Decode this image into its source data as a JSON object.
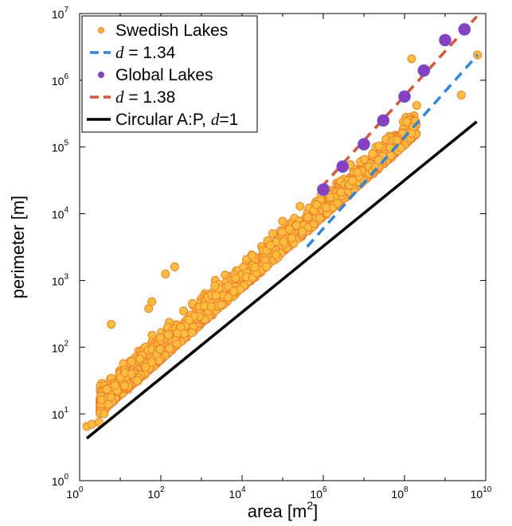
{
  "chart_data": {
    "type": "scatter",
    "xlabel": "area [m",
    "xlabel_sup": "2",
    "xlabel_close": "]",
    "ylabel": "perimeter [m]",
    "xscale": "log",
    "yscale": "log",
    "xlim": [
      1,
      10000000000
    ],
    "ylim": [
      1,
      10000000
    ],
    "grid": false,
    "legend_placement": "top-left",
    "x_tick_labels": [
      {
        "base": "10",
        "exp": "0"
      },
      {
        "base": "10",
        "exp": "2"
      },
      {
        "base": "10",
        "exp": "4"
      },
      {
        "base": "10",
        "exp": "6"
      },
      {
        "base": "10",
        "exp": "8"
      },
      {
        "base": "10",
        "exp": "10"
      }
    ],
    "y_tick_labels": [
      {
        "base": "10",
        "exp": "0"
      },
      {
        "base": "10",
        "exp": "1"
      },
      {
        "base": "10",
        "exp": "2"
      },
      {
        "base": "10",
        "exp": "3"
      },
      {
        "base": "10",
        "exp": "4"
      },
      {
        "base": "10",
        "exp": "5"
      },
      {
        "base": "10",
        "exp": "6"
      },
      {
        "base": "10",
        "exp": "7"
      }
    ],
    "legend": [
      {
        "label": "Swedish Lakes",
        "marker": "dot",
        "color": "#FDB63A"
      },
      {
        "label_italic": "d",
        "label": " = 1.34",
        "marker": "dash",
        "color": "#2E86DE"
      },
      {
        "label": "Global Lakes",
        "marker": "dot",
        "color": "#8A3FC1"
      },
      {
        "label_italic": "d",
        "label": " = 1.38",
        "marker": "dash",
        "color": "#D9553A"
      },
      {
        "label": "Circular A:P, ",
        "label_italic": "d",
        "label_tail": "=1",
        "marker": "line",
        "color": "#000000"
      }
    ],
    "series": [
      {
        "name": "Swedish Lakes",
        "kind": "scatter",
        "fill": "#FDBE3E",
        "stroke": "#F0822E",
        "cloud": {
          "count": 1900,
          "x_log_range": [
            0.5,
            8.3
          ],
          "slope": 0.535,
          "intercept_log": 0.78,
          "spread_log": 0.24
        },
        "points": [
          {
            "x": 1.5,
            "y": 6.5
          },
          {
            "x": 2,
            "y": 7
          },
          {
            "x": 3,
            "y": 7.5
          },
          {
            "x": 4,
            "y": 10
          },
          {
            "x": 6,
            "y": 220
          },
          {
            "x": 50,
            "y": 380
          },
          {
            "x": 60,
            "y": 480
          },
          {
            "x": 130,
            "y": 1250
          },
          {
            "x": 220,
            "y": 1600
          },
          {
            "x": 40000,
            "y": 1600
          },
          {
            "x": 150000000,
            "y": 2100000
          },
          {
            "x": 2500000000,
            "y": 600000
          },
          {
            "x": 6300000000,
            "y": 2400000
          },
          {
            "x": 200000000,
            "y": 420000
          }
        ]
      },
      {
        "name": "Global Lakes",
        "kind": "scatter",
        "fill": "#8A3FC1",
        "stroke": "#6A4CD8",
        "points": [
          {
            "x": 1000000,
            "y": 23000
          },
          {
            "x": 3000000,
            "y": 51000
          },
          {
            "x": 10000000,
            "y": 110000
          },
          {
            "x": 30000000,
            "y": 250000
          },
          {
            "x": 100000000,
            "y": 570000
          },
          {
            "x": 300000000,
            "y": 1400000
          },
          {
            "x": 1000000000,
            "y": 4000000
          },
          {
            "x": 3000000000,
            "y": 5800000
          }
        ]
      },
      {
        "name": "d = 1.34",
        "kind": "dashed-line",
        "color": "#2E86DE",
        "x": [
          400000,
          6300000000
        ],
        "y": [
          3200,
          2400000
        ]
      },
      {
        "name": "d = 1.38",
        "kind": "dashed-line",
        "color": "#D9553A",
        "x": [
          900000,
          6000000000
        ],
        "y": [
          25000,
          9000000
        ]
      },
      {
        "name": "Circular A:P, d=1",
        "kind": "line",
        "color": "#000000",
        "x": [
          1.5,
          6000000000
        ],
        "y": [
          4.3,
          240000
        ]
      }
    ]
  }
}
